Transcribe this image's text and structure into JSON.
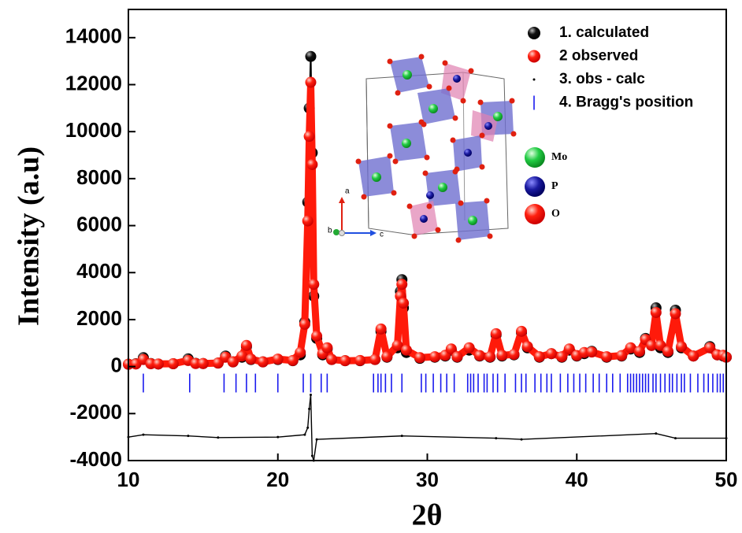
{
  "chart_data": {
    "type": "rietveld",
    "x_label": "2θ",
    "y_label": "Intensity (a.u)",
    "xlim": [
      10,
      50
    ],
    "xticks": [
      10,
      20,
      30,
      40,
      50
    ],
    "ylim": [
      -4000,
      15200
    ],
    "yticks": [
      -4000,
      -2000,
      0,
      2000,
      4000,
      6000,
      8000,
      10000,
      12000,
      14000
    ],
    "legend_position": "upper right",
    "x": [
      10,
      10.5,
      11,
      11.5,
      12,
      13,
      14,
      14.5,
      15,
      16,
      16.5,
      17,
      17.6,
      17.9,
      18.2,
      19,
      20,
      21,
      21.5,
      21.8,
      22.0,
      22.1,
      22.2,
      22.3,
      22.4,
      22.6,
      23.0,
      23.3,
      23.6,
      24.5,
      25.5,
      26.5,
      26.9,
      27.3,
      28.0,
      28.2,
      28.3,
      28.4,
      28.6,
      29.5,
      30.5,
      31.2,
      31.6,
      32.0,
      32.8,
      33.5,
      34.2,
      34.6,
      35.0,
      35.8,
      36.3,
      36.7,
      37.5,
      38.3,
      39.0,
      39.5,
      40.0,
      40.5,
      41.0,
      42.0,
      43.0,
      43.6,
      44.2,
      44.6,
      45.0,
      45.3,
      45.6,
      46.1,
      46.6,
      47.0,
      47.8,
      48.9,
      49.4,
      49.8,
      50
    ],
    "series": [
      {
        "name": "1. calculated",
        "color": "#000000",
        "marker": "sphere",
        "values": [
          100,
          120,
          380,
          130,
          110,
          120,
          330,
          140,
          130,
          150,
          450,
          200,
          400,
          850,
          300,
          200,
          300,
          250,
          500,
          1900,
          7000,
          11000,
          13200,
          9100,
          3000,
          1200,
          500,
          750,
          300,
          250,
          250,
          300,
          1500,
          400,
          800,
          3200,
          3700,
          2500,
          600,
          350,
          400,
          450,
          700,
          400,
          700,
          450,
          400,
          1350,
          450,
          500,
          1450,
          800,
          400,
          550,
          400,
          700,
          450,
          550,
          650,
          400,
          450,
          750,
          600,
          1200,
          900,
          2500,
          800,
          600,
          2400,
          800,
          450,
          850,
          500,
          450,
          400
        ]
      },
      {
        "name": "2  observed",
        "color": "#ff1a0a",
        "marker": "sphere",
        "values": [
          100,
          110,
          300,
          120,
          110,
          120,
          260,
          130,
          130,
          150,
          400,
          200,
          450,
          900,
          320,
          200,
          320,
          260,
          600,
          1800,
          6200,
          9800,
          12100,
          8600,
          3500,
          1300,
          550,
          800,
          300,
          250,
          260,
          300,
          1600,
          420,
          900,
          3000,
          3500,
          2700,
          700,
          380,
          420,
          480,
          750,
          420,
          800,
          470,
          420,
          1400,
          480,
          520,
          1500,
          850,
          420,
          550,
          420,
          750,
          470,
          600,
          620,
          420,
          470,
          800,
          650,
          1150,
          900,
          2300,
          900,
          650,
          2250,
          850,
          450,
          800,
          500,
          480,
          400
        ]
      },
      {
        "name": "3. obs - calc",
        "color": "#000000",
        "marker": "dot",
        "x": [
          10,
          11,
          14,
          16,
          20,
          21.8,
          22.0,
          22.1,
          22.2,
          22.3,
          22.4,
          22.6,
          28.3,
          34.6,
          36.3,
          45.3,
          46.6,
          50
        ],
        "values": [
          -3000,
          -2900,
          -2950,
          -3020,
          -3000,
          -2900,
          -2600,
          -1800,
          -1200,
          -3800,
          -4000,
          -3100,
          -2950,
          -3050,
          -3100,
          -2850,
          -3050,
          -3050
        ]
      },
      {
        "name": "4. Bragg's position",
        "color": "#1a1aee",
        "marker": "bar",
        "x": [
          11.0,
          14.1,
          16.4,
          17.2,
          17.9,
          18.5,
          20.0,
          21.7,
          22.2,
          22.9,
          23.3,
          26.4,
          26.7,
          26.9,
          27.2,
          27.6,
          28.3,
          29.6,
          29.9,
          30.4,
          30.9,
          31.3,
          31.8,
          32.7,
          32.9,
          33.1,
          33.4,
          33.8,
          34.0,
          34.4,
          34.7,
          35.2,
          35.9,
          36.3,
          36.6,
          37.2,
          37.6,
          38.0,
          38.3,
          38.9,
          39.4,
          39.8,
          40.2,
          40.6,
          41.1,
          41.5,
          42.0,
          42.4,
          42.9,
          43.4,
          43.6,
          43.8,
          44.0,
          44.2,
          44.4,
          44.6,
          44.8,
          45.1,
          45.3,
          45.6,
          45.9,
          46.2,
          46.4,
          46.7,
          47.0,
          47.2,
          47.6,
          48.1,
          48.5,
          48.8,
          49.1,
          49.4,
          49.6,
          49.8
        ]
      }
    ],
    "inset": {
      "atoms": [
        "Mo",
        "P",
        "O"
      ],
      "axes": [
        "a",
        "b",
        "c"
      ]
    }
  }
}
